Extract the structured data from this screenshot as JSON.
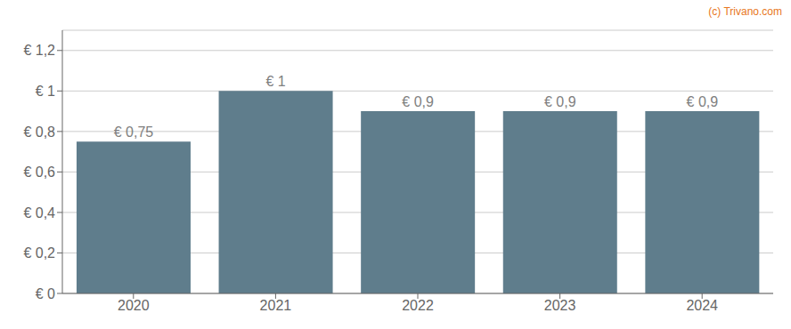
{
  "chart_data": {
    "type": "bar",
    "categories": [
      "2020",
      "2021",
      "2022",
      "2023",
      "2024"
    ],
    "values": [
      0.75,
      1.0,
      0.9,
      0.9,
      0.9
    ],
    "value_labels": [
      "€ 0,75",
      "€ 1",
      "€ 0,9",
      "€ 0,9",
      "€ 0,9"
    ],
    "data_labels": true,
    "color": "#5f7d8c",
    "ylim": [
      0,
      1.3
    ],
    "yticks": [
      {
        "value": 0,
        "label": "€ 0"
      },
      {
        "value": 0.2,
        "label": "€ 0,2"
      },
      {
        "value": 0.4,
        "label": "€ 0,4"
      },
      {
        "value": 0.6,
        "label": "€ 0,6"
      },
      {
        "value": 0.8,
        "label": "€ 0,8"
      },
      {
        "value": 1.0,
        "label": "€ 1"
      },
      {
        "value": 1.2,
        "label": "€ 1,2"
      }
    ],
    "grid": true,
    "annotations": [
      {
        "text": "(c) Trivano.com",
        "color": "#e87722"
      }
    ]
  }
}
